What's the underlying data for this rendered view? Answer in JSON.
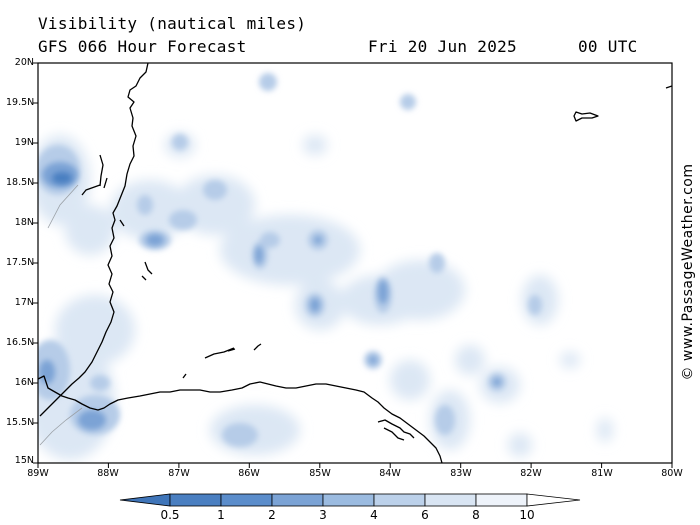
{
  "header": {
    "line1": "Visibility (nautical miles)",
    "model": "GFS 066 Hour Forecast",
    "date": "Fri 20 Jun 2025",
    "time": "00 UTC"
  },
  "map": {
    "lat_labels": [
      "20N",
      "19.5N",
      "19N",
      "18.5N",
      "18N",
      "17.5N",
      "17N",
      "16.5N",
      "16N",
      "15.5N",
      "15N"
    ],
    "lon_labels": [
      "89W",
      "88W",
      "87W",
      "86W",
      "85W",
      "84W",
      "83W",
      "82W",
      "81W",
      "80W"
    ],
    "lon_range": [
      -89,
      -80
    ],
    "lat_range": [
      15,
      20
    ]
  },
  "credit": "© www.PassageWeather.com",
  "colorbar": {
    "levels": [
      "0.5",
      "1",
      "2",
      "3",
      "4",
      "6",
      "8",
      "10"
    ],
    "colors": [
      "#4a7fc1",
      "#5b8dcb",
      "#7ba3d5",
      "#9bbbe0",
      "#bcd1ea",
      "#d9e5f3",
      "#eef3fa"
    ]
  }
}
